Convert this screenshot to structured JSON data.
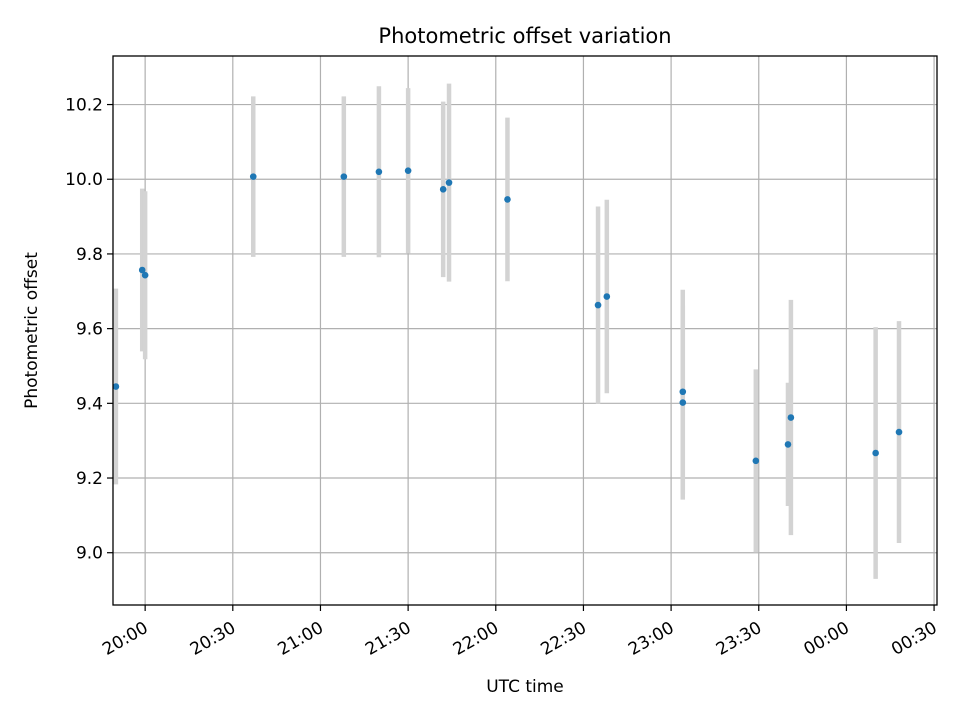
{
  "chart_data": {
    "type": "scatter",
    "title": "Photometric offset variation",
    "xlabel": "UTC time",
    "ylabel": "Photometric offset",
    "x_ticks": [
      "20:00",
      "20:30",
      "21:00",
      "21:30",
      "22:00",
      "22:30",
      "23:00",
      "23:30",
      "00:00",
      "00:30"
    ],
    "y_ticks": [
      "9.0",
      "9.2",
      "9.4",
      "9.6",
      "9.8",
      "10.0",
      "10.2"
    ],
    "ylim": [
      8.86,
      10.33
    ],
    "xlim": [
      "19:49",
      "00:31"
    ],
    "grid": true,
    "colors": {
      "point": "#1f77b4",
      "errorbar": "#d3d3d3",
      "grid": "#b0b0b0"
    },
    "points": [
      {
        "x": "19:50",
        "y": 9.445,
        "err": 0.262
      },
      {
        "x": "19:59",
        "y": 9.757,
        "err": 0.218
      },
      {
        "x": "20:00",
        "y": 9.743,
        "err": 0.225
      },
      {
        "x": "20:37",
        "y": 10.007,
        "err": 0.215
      },
      {
        "x": "21:08",
        "y": 10.007,
        "err": 0.215
      },
      {
        "x": "21:20",
        "y": 10.02,
        "err": 0.229
      },
      {
        "x": "21:30",
        "y": 10.023,
        "err": 0.221
      },
      {
        "x": "21:42",
        "y": 9.973,
        "err": 0.235
      },
      {
        "x": "21:44",
        "y": 9.991,
        "err": 0.265
      },
      {
        "x": "22:04",
        "y": 9.946,
        "err": 0.219
      },
      {
        "x": "22:35",
        "y": 9.663,
        "err": 0.264
      },
      {
        "x": "22:38",
        "y": 9.686,
        "err": 0.259
      },
      {
        "x": "23:04",
        "y": 9.431,
        "err": 0.273
      },
      {
        "x": "23:04",
        "y": 9.402,
        "err": 0.26
      },
      {
        "x": "23:29",
        "y": 9.246,
        "err": 0.245
      },
      {
        "x": "23:40",
        "y": 9.29,
        "err": 0.165
      },
      {
        "x": "23:41",
        "y": 9.362,
        "err": 0.315
      },
      {
        "x": "00:10",
        "y": 9.267,
        "err": 0.337
      },
      {
        "x": "00:18",
        "y": 9.323,
        "err": 0.297
      }
    ]
  }
}
